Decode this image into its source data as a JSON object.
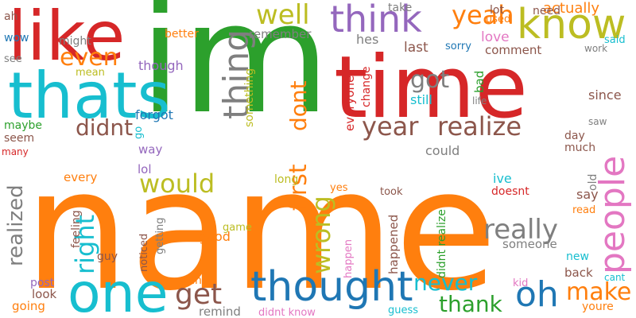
{
  "words": [
    {
      "text": "name",
      "color": "#ff7f0e"
    },
    {
      "text": "im",
      "color": "#2ca02c"
    },
    {
      "text": "time",
      "color": "#d62728"
    },
    {
      "text": "like",
      "color": "#d62728"
    },
    {
      "text": "thats",
      "color": "#17becf"
    },
    {
      "text": "one",
      "color": "#17becf"
    },
    {
      "text": "thought",
      "color": "#1f77b4"
    },
    {
      "text": "know",
      "color": "#bcbd22"
    },
    {
      "text": "think",
      "color": "#9467bd"
    },
    {
      "text": "thing",
      "color": "#7f7f7f"
    },
    {
      "text": "people",
      "color": "#e377c2"
    },
    {
      "text": "well",
      "color": "#bcbd22"
    },
    {
      "text": "yeah",
      "color": "#ff7f0e"
    },
    {
      "text": "even",
      "color": "#ff7f0e"
    },
    {
      "text": "got",
      "color": "#7f7f7f"
    },
    {
      "text": "dont",
      "color": "#ff7f0e"
    },
    {
      "text": "first",
      "color": "#ff7f0e"
    },
    {
      "text": "year",
      "color": "#8c564b"
    },
    {
      "text": "realize",
      "color": "#8c564b"
    },
    {
      "text": "didnt",
      "color": "#8c564b"
    },
    {
      "text": "would",
      "color": "#bcbd22"
    },
    {
      "text": "really",
      "color": "#7f7f7f"
    },
    {
      "text": "right",
      "color": "#17becf"
    },
    {
      "text": "realized",
      "color": "#7f7f7f"
    },
    {
      "text": "wrong",
      "color": "#bcbd22"
    },
    {
      "text": "get",
      "color": "#8c564b"
    },
    {
      "text": "oh",
      "color": "#1f77b4"
    },
    {
      "text": "make",
      "color": "#ff7f0e"
    },
    {
      "text": "never",
      "color": "#17becf"
    },
    {
      "text": "thank",
      "color": "#2ca02c"
    },
    {
      "text": "actually",
      "color": "#ff7f0e"
    },
    {
      "text": "need",
      "color": "#8c564b"
    },
    {
      "text": "lot",
      "color": "#8c564b"
    },
    {
      "text": "used",
      "color": "#ff7f0e"
    },
    {
      "text": "take",
      "color": "#7f7f7f"
    },
    {
      "text": "said",
      "color": "#17becf"
    },
    {
      "text": "ah",
      "color": "#8c564b"
    },
    {
      "text": "wow",
      "color": "#1f77b4"
    },
    {
      "text": "might",
      "color": "#7f7f7f"
    },
    {
      "text": "better",
      "color": "#ff7f0e"
    },
    {
      "text": "remember",
      "color": "#7f7f7f"
    },
    {
      "text": "hes",
      "color": "#7f7f7f"
    },
    {
      "text": "last",
      "color": "#8c564b"
    },
    {
      "text": "sorry",
      "color": "#1f77b4"
    },
    {
      "text": "love",
      "color": "#e377c2"
    },
    {
      "text": "comment",
      "color": "#8c564b"
    },
    {
      "text": "work",
      "color": "#7f7f7f"
    },
    {
      "text": "see",
      "color": "#7f7f7f"
    },
    {
      "text": "mean",
      "color": "#bcbd22"
    },
    {
      "text": "though",
      "color": "#9467bd"
    },
    {
      "text": "something",
      "color": "#bcbd22"
    },
    {
      "text": "everyone",
      "color": "#d62728"
    },
    {
      "text": "change",
      "color": "#d62728"
    },
    {
      "text": "bad",
      "color": "#2ca02c"
    },
    {
      "text": "still",
      "color": "#17becf"
    },
    {
      "text": "life",
      "color": "#7f7f7f"
    },
    {
      "text": "since",
      "color": "#8c564b"
    },
    {
      "text": "forgot",
      "color": "#1f77b4"
    },
    {
      "text": "maybe",
      "color": "#2ca02c"
    },
    {
      "text": "go",
      "color": "#17becf"
    },
    {
      "text": "saw",
      "color": "#7f7f7f"
    },
    {
      "text": "day",
      "color": "#8c564b"
    },
    {
      "text": "seem",
      "color": "#8c564b"
    },
    {
      "text": "way",
      "color": "#9467bd"
    },
    {
      "text": "could",
      "color": "#7f7f7f"
    },
    {
      "text": "much",
      "color": "#8c564b"
    },
    {
      "text": "many",
      "color": "#d62728"
    },
    {
      "text": "lol",
      "color": "#9467bd"
    },
    {
      "text": "every",
      "color": "#ff7f0e"
    },
    {
      "text": "long",
      "color": "#bcbd22"
    },
    {
      "text": "ive",
      "color": "#17becf"
    },
    {
      "text": "doesnt",
      "color": "#d62728"
    },
    {
      "text": "old",
      "color": "#7f7f7f"
    },
    {
      "text": "say",
      "color": "#8c564b"
    },
    {
      "text": "yes",
      "color": "#ff7f0e"
    },
    {
      "text": "took",
      "color": "#8c564b"
    },
    {
      "text": "man",
      "color": "#ff7f0e"
    },
    {
      "text": "read",
      "color": "#ff7f0e"
    },
    {
      "text": "game",
      "color": "#bcbd22"
    },
    {
      "text": "feeling",
      "color": "#8c564b"
    },
    {
      "text": "getting",
      "color": "#7f7f7f"
    },
    {
      "text": "good",
      "color": "#ff7f0e"
    },
    {
      "text": "noticed",
      "color": "#8c564b"
    },
    {
      "text": "guy",
      "color": "#8c564b"
    },
    {
      "text": "happened",
      "color": "#8c564b"
    },
    {
      "text": "didnt realize",
      "color": "#2ca02c"
    },
    {
      "text": "someone",
      "color": "#7f7f7f"
    },
    {
      "text": "new",
      "color": "#17becf"
    },
    {
      "text": "post",
      "color": "#9467bd"
    },
    {
      "text": "want",
      "color": "#ff7f0e"
    },
    {
      "text": "happen",
      "color": "#e377c2"
    },
    {
      "text": "kid",
      "color": "#e377c2"
    },
    {
      "text": "back",
      "color": "#8c564b"
    },
    {
      "text": "cant",
      "color": "#17becf"
    },
    {
      "text": "look",
      "color": "#8c564b"
    },
    {
      "text": "going",
      "color": "#ff7f0e"
    },
    {
      "text": "remind",
      "color": "#7f7f7f"
    },
    {
      "text": "didnt know",
      "color": "#e377c2"
    },
    {
      "text": "guess",
      "color": "#17becf"
    },
    {
      "text": "youre",
      "color": "#ff7f0e"
    }
  ]
}
